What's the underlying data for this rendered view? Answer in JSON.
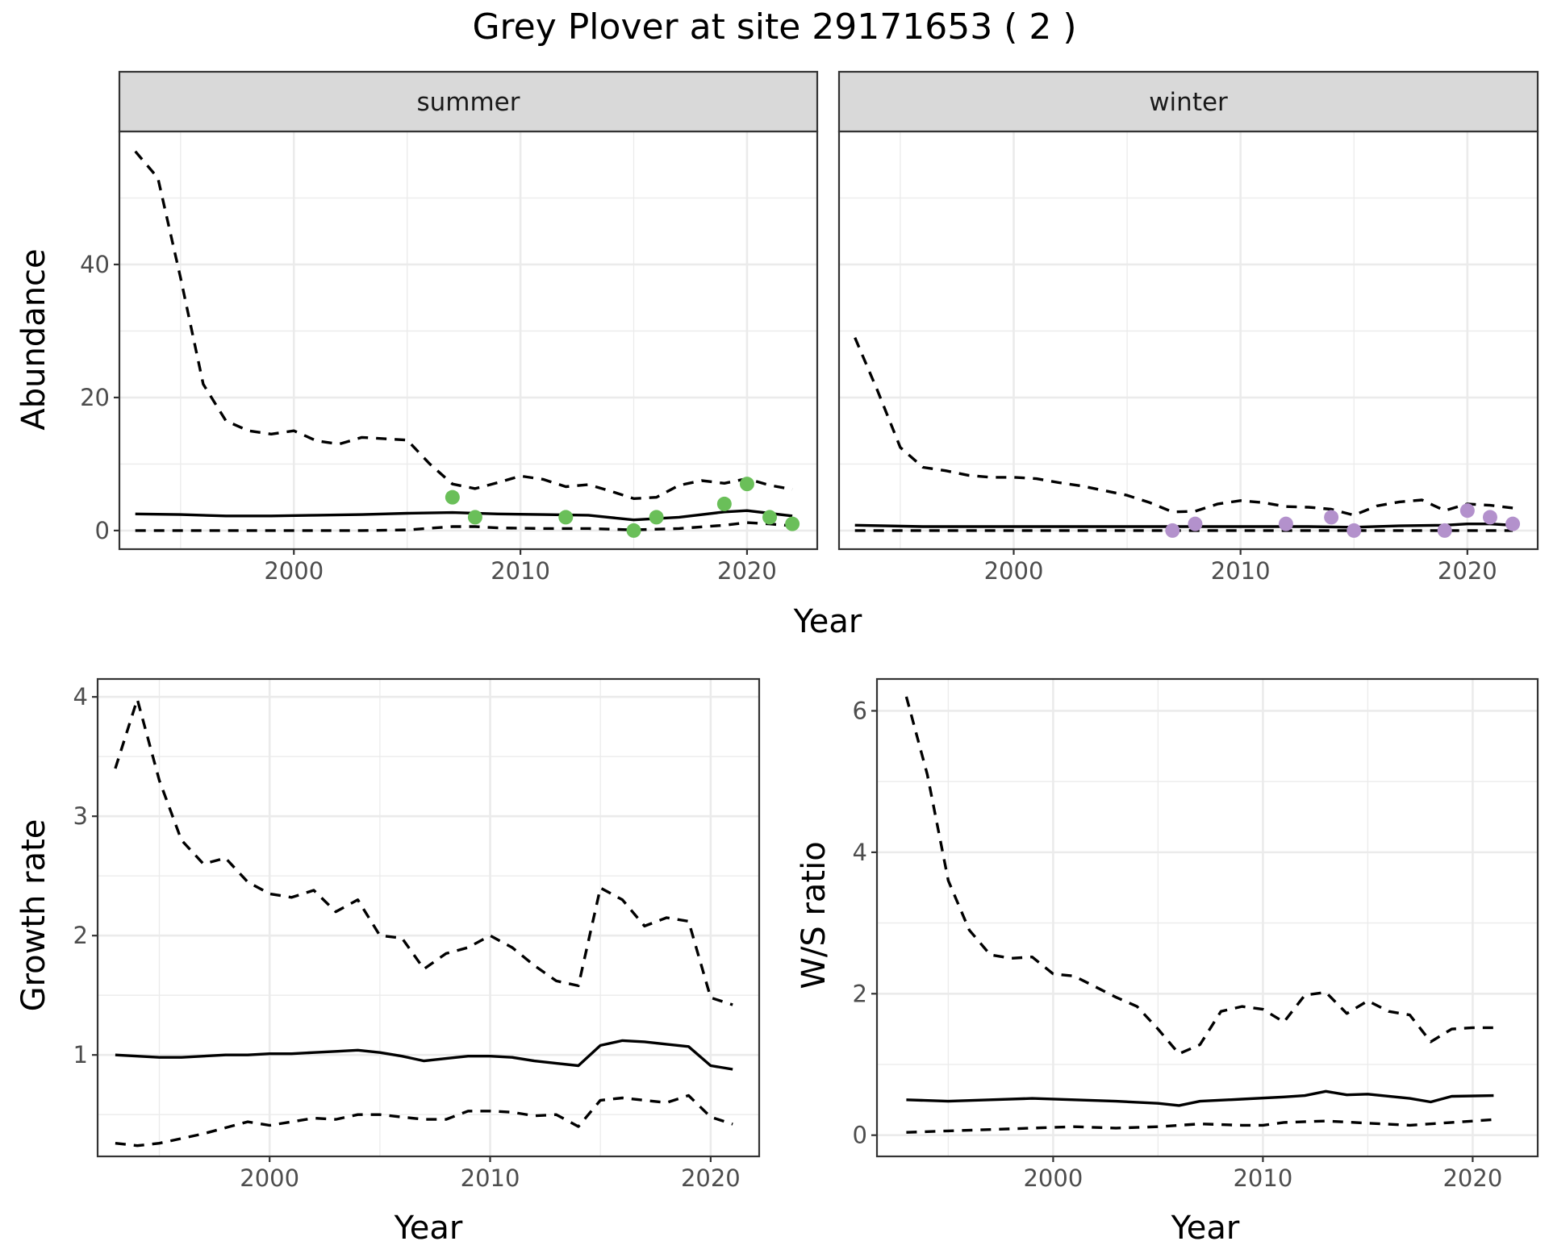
{
  "figure_title": "Grey Plover at site 29171653 ( 2 )",
  "colors": {
    "summer_points": "#6abf59",
    "winter_points": "#b391cc",
    "lines": "#000000"
  },
  "chart_data": [
    {
      "id": "abundance",
      "type": "line",
      "xlabel": "Year",
      "ylabel": "Abundance",
      "xlim": [
        1992.3,
        2023.1
      ],
      "ylim": [
        -2.8,
        60
      ],
      "x_ticks": [
        2000,
        2010,
        2020
      ],
      "y_ticks": [
        0,
        20,
        40
      ],
      "grid": true,
      "facets": [
        {
          "strip": "summer",
          "series": [
            {
              "role": "mean",
              "style": "solid",
              "x": [
                1993,
                1995,
                1997,
                1999,
                2001,
                2003,
                2005,
                2007,
                2009,
                2011,
                2013,
                2015,
                2017,
                2019,
                2020,
                2021,
                2022
              ],
              "y": [
                2.5,
                2.4,
                2.2,
                2.2,
                2.3,
                2.4,
                2.6,
                2.7,
                2.5,
                2.4,
                2.3,
                1.6,
                2.0,
                2.8,
                3.0,
                2.6,
                2.2
              ]
            },
            {
              "role": "upper",
              "style": "dashed",
              "x": [
                1993,
                1994,
                1995,
                1996,
                1997,
                1998,
                1999,
                2000,
                2001,
                2002,
                2003,
                2004,
                2005,
                2006,
                2007,
                2008,
                2009,
                2010,
                2011,
                2012,
                2013,
                2014,
                2015,
                2016,
                2017,
                2018,
                2019,
                2020,
                2021,
                2022
              ],
              "y": [
                57,
                53,
                38,
                22,
                16.5,
                15,
                14.5,
                15,
                13.5,
                13,
                14,
                13.8,
                13.6,
                10,
                7,
                6.3,
                7.2,
                8.2,
                7.7,
                6.6,
                6.9,
                5.9,
                4.8,
                5.0,
                6.8,
                7.5,
                7.1,
                7.8,
                6.8,
                6.2
              ]
            },
            {
              "role": "lower",
              "style": "dashed",
              "x": [
                1993,
                1995,
                1997,
                1999,
                2001,
                2003,
                2005,
                2007,
                2008,
                2009,
                2011,
                2013,
                2015,
                2017,
                2019,
                2020,
                2021,
                2022
              ],
              "y": [
                0,
                0,
                0,
                0,
                0,
                0,
                0.1,
                0.6,
                0.6,
                0.4,
                0.3,
                0.3,
                0.1,
                0.3,
                0.8,
                1.2,
                1.0,
                0.7
              ]
            },
            {
              "role": "observed",
              "style": "points",
              "x": [
                2007,
                2008,
                2012,
                2015,
                2016,
                2019,
                2020,
                2021,
                2022
              ],
              "y": [
                5,
                2,
                2,
                0,
                2,
                4,
                7,
                2,
                1
              ]
            }
          ]
        },
        {
          "strip": "winter",
          "series": [
            {
              "role": "mean",
              "style": "solid",
              "x": [
                1993,
                1996,
                2000,
                2004,
                2007,
                2010,
                2013,
                2015,
                2017,
                2019,
                2020,
                2021,
                2022
              ],
              "y": [
                0.8,
                0.6,
                0.6,
                0.6,
                0.6,
                0.6,
                0.6,
                0.5,
                0.7,
                0.8,
                1.0,
                1.0,
                0.8
              ]
            },
            {
              "role": "upper",
              "style": "dashed",
              "x": [
                1993,
                1994,
                1995,
                1996,
                1997,
                1998,
                1999,
                2000,
                2001,
                2002,
                2003,
                2004,
                2005,
                2006,
                2007,
                2008,
                2009,
                2010,
                2011,
                2012,
                2013,
                2014,
                2015,
                2016,
                2017,
                2018,
                2019,
                2020,
                2021,
                2022
              ],
              "y": [
                29,
                21,
                12.5,
                9.5,
                9,
                8.3,
                8,
                8,
                7.8,
                7.2,
                6.7,
                6,
                5.3,
                4.2,
                2.8,
                2.9,
                4.0,
                4.5,
                4.2,
                3.6,
                3.5,
                3.2,
                2.3,
                3.7,
                4.3,
                4.6,
                3.0,
                4.0,
                3.8,
                3.4
              ]
            },
            {
              "role": "lower",
              "style": "dashed",
              "x": [
                1993,
                2000,
                2010,
                2020,
                2022
              ],
              "y": [
                0,
                0,
                0,
                0,
                0
              ]
            },
            {
              "role": "observed",
              "style": "points",
              "x": [
                2007,
                2008,
                2012,
                2014,
                2015,
                2019,
                2020,
                2021,
                2022
              ],
              "y": [
                0,
                1,
                1,
                2,
                0,
                0,
                3,
                2,
                1
              ]
            }
          ]
        }
      ]
    },
    {
      "id": "growth",
      "type": "line",
      "xlabel": "Year",
      "ylabel": "Growth rate",
      "xlim": [
        1992.2,
        2022.2
      ],
      "ylim": [
        0.15,
        4.15
      ],
      "x_ticks": [
        2000,
        2010,
        2020
      ],
      "y_ticks": [
        1,
        2,
        3,
        4
      ],
      "grid": true,
      "series": [
        {
          "role": "mean",
          "style": "solid",
          "x": [
            1993,
            1994,
            1995,
            1996,
            1997,
            1998,
            1999,
            2000,
            2001,
            2002,
            2003,
            2004,
            2005,
            2006,
            2007,
            2008,
            2009,
            2010,
            2011,
            2012,
            2013,
            2014,
            2015,
            2016,
            2017,
            2018,
            2019,
            2020,
            2021
          ],
          "y": [
            1.0,
            0.99,
            0.98,
            0.98,
            0.99,
            1.0,
            1.0,
            1.01,
            1.01,
            1.02,
            1.03,
            1.04,
            1.02,
            0.99,
            0.95,
            0.97,
            0.99,
            0.99,
            0.98,
            0.95,
            0.93,
            0.91,
            1.08,
            1.12,
            1.11,
            1.09,
            1.07,
            0.91,
            0.88
          ]
        },
        {
          "role": "upper",
          "style": "dashed",
          "x": [
            1993,
            1994,
            1995,
            1996,
            1997,
            1998,
            1999,
            2000,
            2001,
            2002,
            2003,
            2004,
            2005,
            2006,
            2007,
            2008,
            2009,
            2010,
            2011,
            2012,
            2013,
            2014,
            2015,
            2016,
            2017,
            2018,
            2019,
            2020,
            2021
          ],
          "y": [
            3.4,
            3.98,
            3.3,
            2.8,
            2.6,
            2.65,
            2.45,
            2.35,
            2.32,
            2.38,
            2.2,
            2.3,
            2.0,
            1.98,
            1.72,
            1.85,
            1.9,
            2.0,
            1.9,
            1.75,
            1.62,
            1.58,
            2.4,
            2.3,
            2.08,
            2.15,
            2.12,
            1.48,
            1.42
          ]
        },
        {
          "role": "lower",
          "style": "dashed",
          "x": [
            1993,
            1994,
            1995,
            1996,
            1997,
            1998,
            1999,
            2000,
            2001,
            2002,
            2003,
            2004,
            2005,
            2006,
            2007,
            2008,
            2009,
            2010,
            2011,
            2012,
            2013,
            2014,
            2015,
            2016,
            2017,
            2018,
            2019,
            2020,
            2021
          ],
          "y": [
            0.26,
            0.24,
            0.26,
            0.3,
            0.34,
            0.39,
            0.44,
            0.41,
            0.44,
            0.47,
            0.46,
            0.5,
            0.5,
            0.48,
            0.46,
            0.46,
            0.53,
            0.53,
            0.52,
            0.49,
            0.5,
            0.4,
            0.62,
            0.64,
            0.62,
            0.6,
            0.66,
            0.48,
            0.42
          ]
        }
      ]
    },
    {
      "id": "ws_ratio",
      "type": "line",
      "xlabel": "Year",
      "ylabel": "W/S ratio",
      "xlim": [
        1991.6,
        2023.1
      ],
      "ylim": [
        -0.3,
        6.45
      ],
      "x_ticks": [
        2000,
        2010,
        2020
      ],
      "y_ticks": [
        0,
        2,
        4,
        6
      ],
      "grid": true,
      "series": [
        {
          "role": "mean",
          "style": "solid",
          "x": [
            1993,
            1995,
            1997,
            1999,
            2001,
            2003,
            2005,
            2006,
            2007,
            2009,
            2011,
            2012,
            2013,
            2014,
            2015,
            2017,
            2018,
            2019,
            2021
          ],
          "y": [
            0.5,
            0.48,
            0.5,
            0.52,
            0.5,
            0.48,
            0.45,
            0.42,
            0.48,
            0.51,
            0.54,
            0.56,
            0.62,
            0.57,
            0.58,
            0.52,
            0.47,
            0.55,
            0.56
          ]
        },
        {
          "role": "upper",
          "style": "dashed",
          "x": [
            1993,
            1994,
            1995,
            1996,
            1997,
            1998,
            1999,
            2000,
            2001,
            2002,
            2003,
            2004,
            2005,
            2006,
            2007,
            2008,
            2009,
            2010,
            2011,
            2012,
            2013,
            2014,
            2015,
            2016,
            2017,
            2018,
            2019,
            2020,
            2021
          ],
          "y": [
            6.2,
            5.1,
            3.6,
            2.9,
            2.55,
            2.5,
            2.52,
            2.28,
            2.25,
            2.1,
            1.95,
            1.82,
            1.5,
            1.15,
            1.28,
            1.75,
            1.82,
            1.78,
            1.6,
            1.98,
            2.02,
            1.72,
            1.9,
            1.75,
            1.7,
            1.32,
            1.5,
            1.52,
            1.52
          ]
        },
        {
          "role": "lower",
          "style": "dashed",
          "x": [
            1993,
            1995,
            1997,
            1999,
            2001,
            2003,
            2005,
            2007,
            2009,
            2010,
            2011,
            2013,
            2015,
            2017,
            2019,
            2021
          ],
          "y": [
            0.04,
            0.06,
            0.08,
            0.1,
            0.12,
            0.1,
            0.12,
            0.16,
            0.14,
            0.14,
            0.18,
            0.2,
            0.17,
            0.14,
            0.18,
            0.22
          ]
        }
      ]
    }
  ]
}
